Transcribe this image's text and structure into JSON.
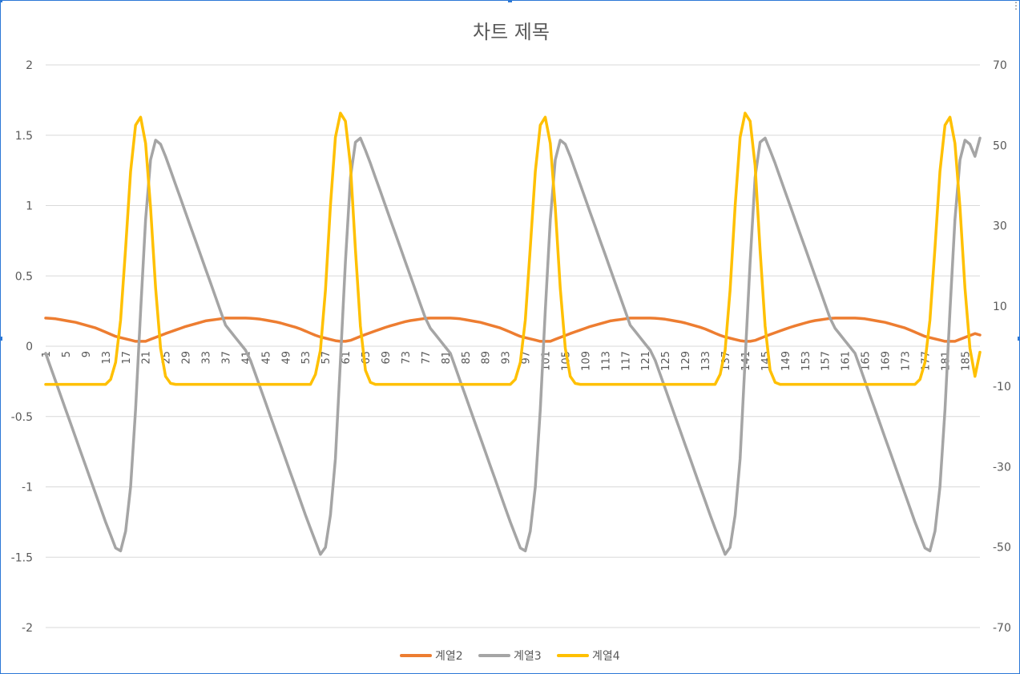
{
  "chart_data": {
    "type": "line",
    "title": "차트 제목",
    "x_ticks_shown": [
      1,
      5,
      9,
      13,
      17,
      21,
      25,
      29,
      33,
      37,
      41,
      45,
      49,
      53,
      57,
      61,
      65,
      69,
      73,
      77,
      81,
      85,
      89,
      93,
      97,
      101,
      105,
      109,
      113,
      117,
      121,
      125,
      129,
      133,
      137,
      141,
      145,
      149,
      153,
      157,
      161,
      165,
      169,
      173,
      177,
      181,
      185
    ],
    "x_range": [
      1,
      188
    ],
    "y_left": {
      "ticks": [
        "2",
        "1.5",
        "1",
        "0.5",
        "0",
        "-0.5",
        "-1",
        "-1.5",
        "-2"
      ],
      "range": [
        -2,
        2
      ]
    },
    "y_right": {
      "ticks": [
        "70",
        "50",
        "30",
        "10",
        "-10",
        "-30",
        "-50",
        "-70"
      ],
      "range": [
        -70,
        70
      ]
    },
    "grid": true,
    "legend_position": "bottom",
    "period": 40.5,
    "series": [
      {
        "name": "계열2",
        "axis": "left",
        "color": "#ED7D31",
        "cycle_keypoints": [
          [
            0,
            0.2
          ],
          [
            2,
            0.195
          ],
          [
            6,
            0.17
          ],
          [
            10,
            0.13
          ],
          [
            14,
            0.07
          ],
          [
            18,
            0.035
          ],
          [
            20,
            0.035
          ],
          [
            24,
            0.09
          ],
          [
            28,
            0.14
          ],
          [
            32,
            0.18
          ],
          [
            36,
            0.2
          ],
          [
            40.5,
            0.2
          ]
        ]
      },
      {
        "name": "계열3",
        "axis": "left",
        "color": "#A5A5A5",
        "cycle_keypoints": [
          [
            0,
            -0.05
          ],
          [
            4,
            -0.45
          ],
          [
            8,
            -0.85
          ],
          [
            12,
            -1.25
          ],
          [
            14.5,
            -1.48
          ],
          [
            15.5,
            -1.43
          ],
          [
            16.5,
            -1.2
          ],
          [
            17.5,
            -0.8
          ],
          [
            18.5,
            -0.1
          ],
          [
            19.5,
            0.6
          ],
          [
            20.5,
            1.2
          ],
          [
            21.5,
            1.45
          ],
          [
            22.5,
            1.48
          ],
          [
            24,
            1.35
          ],
          [
            28,
            0.95
          ],
          [
            32,
            0.55
          ],
          [
            36,
            0.15
          ],
          [
            40.5,
            -0.05
          ]
        ]
      },
      {
        "name": "계열4",
        "axis": "right",
        "color": "#FFC000",
        "cycle_keypoints": [
          [
            0,
            -9.5
          ],
          [
            12.5,
            -9.5
          ],
          [
            13.5,
            -7
          ],
          [
            14.5,
            -1
          ],
          [
            15.5,
            14
          ],
          [
            16.5,
            35
          ],
          [
            17.5,
            52
          ],
          [
            18.5,
            58
          ],
          [
            19.5,
            56
          ],
          [
            20.5,
            45
          ],
          [
            21.5,
            24
          ],
          [
            22.5,
            5
          ],
          [
            23.5,
            -6
          ],
          [
            24.5,
            -9
          ],
          [
            25.5,
            -9.5
          ],
          [
            40.5,
            -9.5
          ]
        ]
      }
    ],
    "series_end_values": {
      "계열2": 0.08,
      "계열3": 1.48,
      "계열4": -1.5
    }
  }
}
